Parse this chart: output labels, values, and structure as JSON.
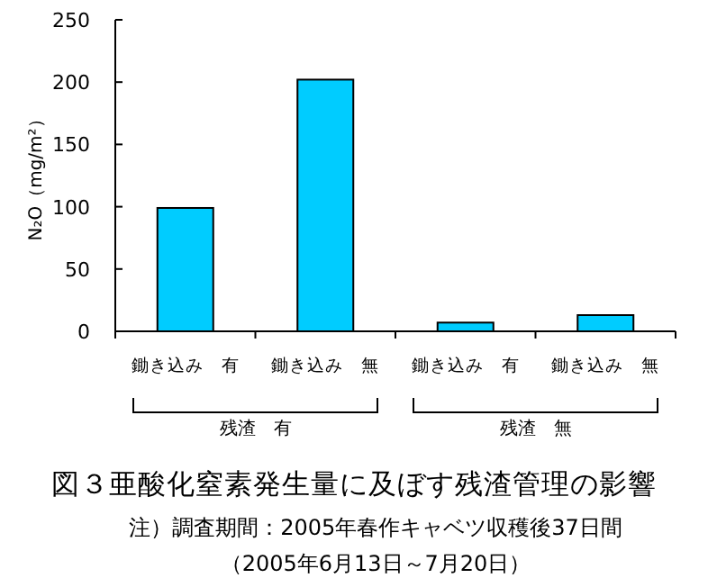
{
  "chart_data": {
    "type": "bar",
    "title": "図３亜酸化窒素発生量に及ぼす残渣管理の影響",
    "ylabel": "N₂O（mg/m²）",
    "categories": [
      "鋤き込み　有",
      "鋤き込み　無",
      "鋤き込み　有",
      "鋤き込み　無"
    ],
    "values": [
      99,
      202,
      7,
      13
    ],
    "color": "#00ccff",
    "ylim": [
      0,
      250
    ],
    "yticks": [
      0,
      50,
      100,
      150,
      200,
      250
    ],
    "annotations": [
      "残渣　有",
      "残渣　無",
      "注）調査期間：2005年春作キャベツ収穫後37日間",
      "（2005年6月13日～7月20日）"
    ]
  }
}
